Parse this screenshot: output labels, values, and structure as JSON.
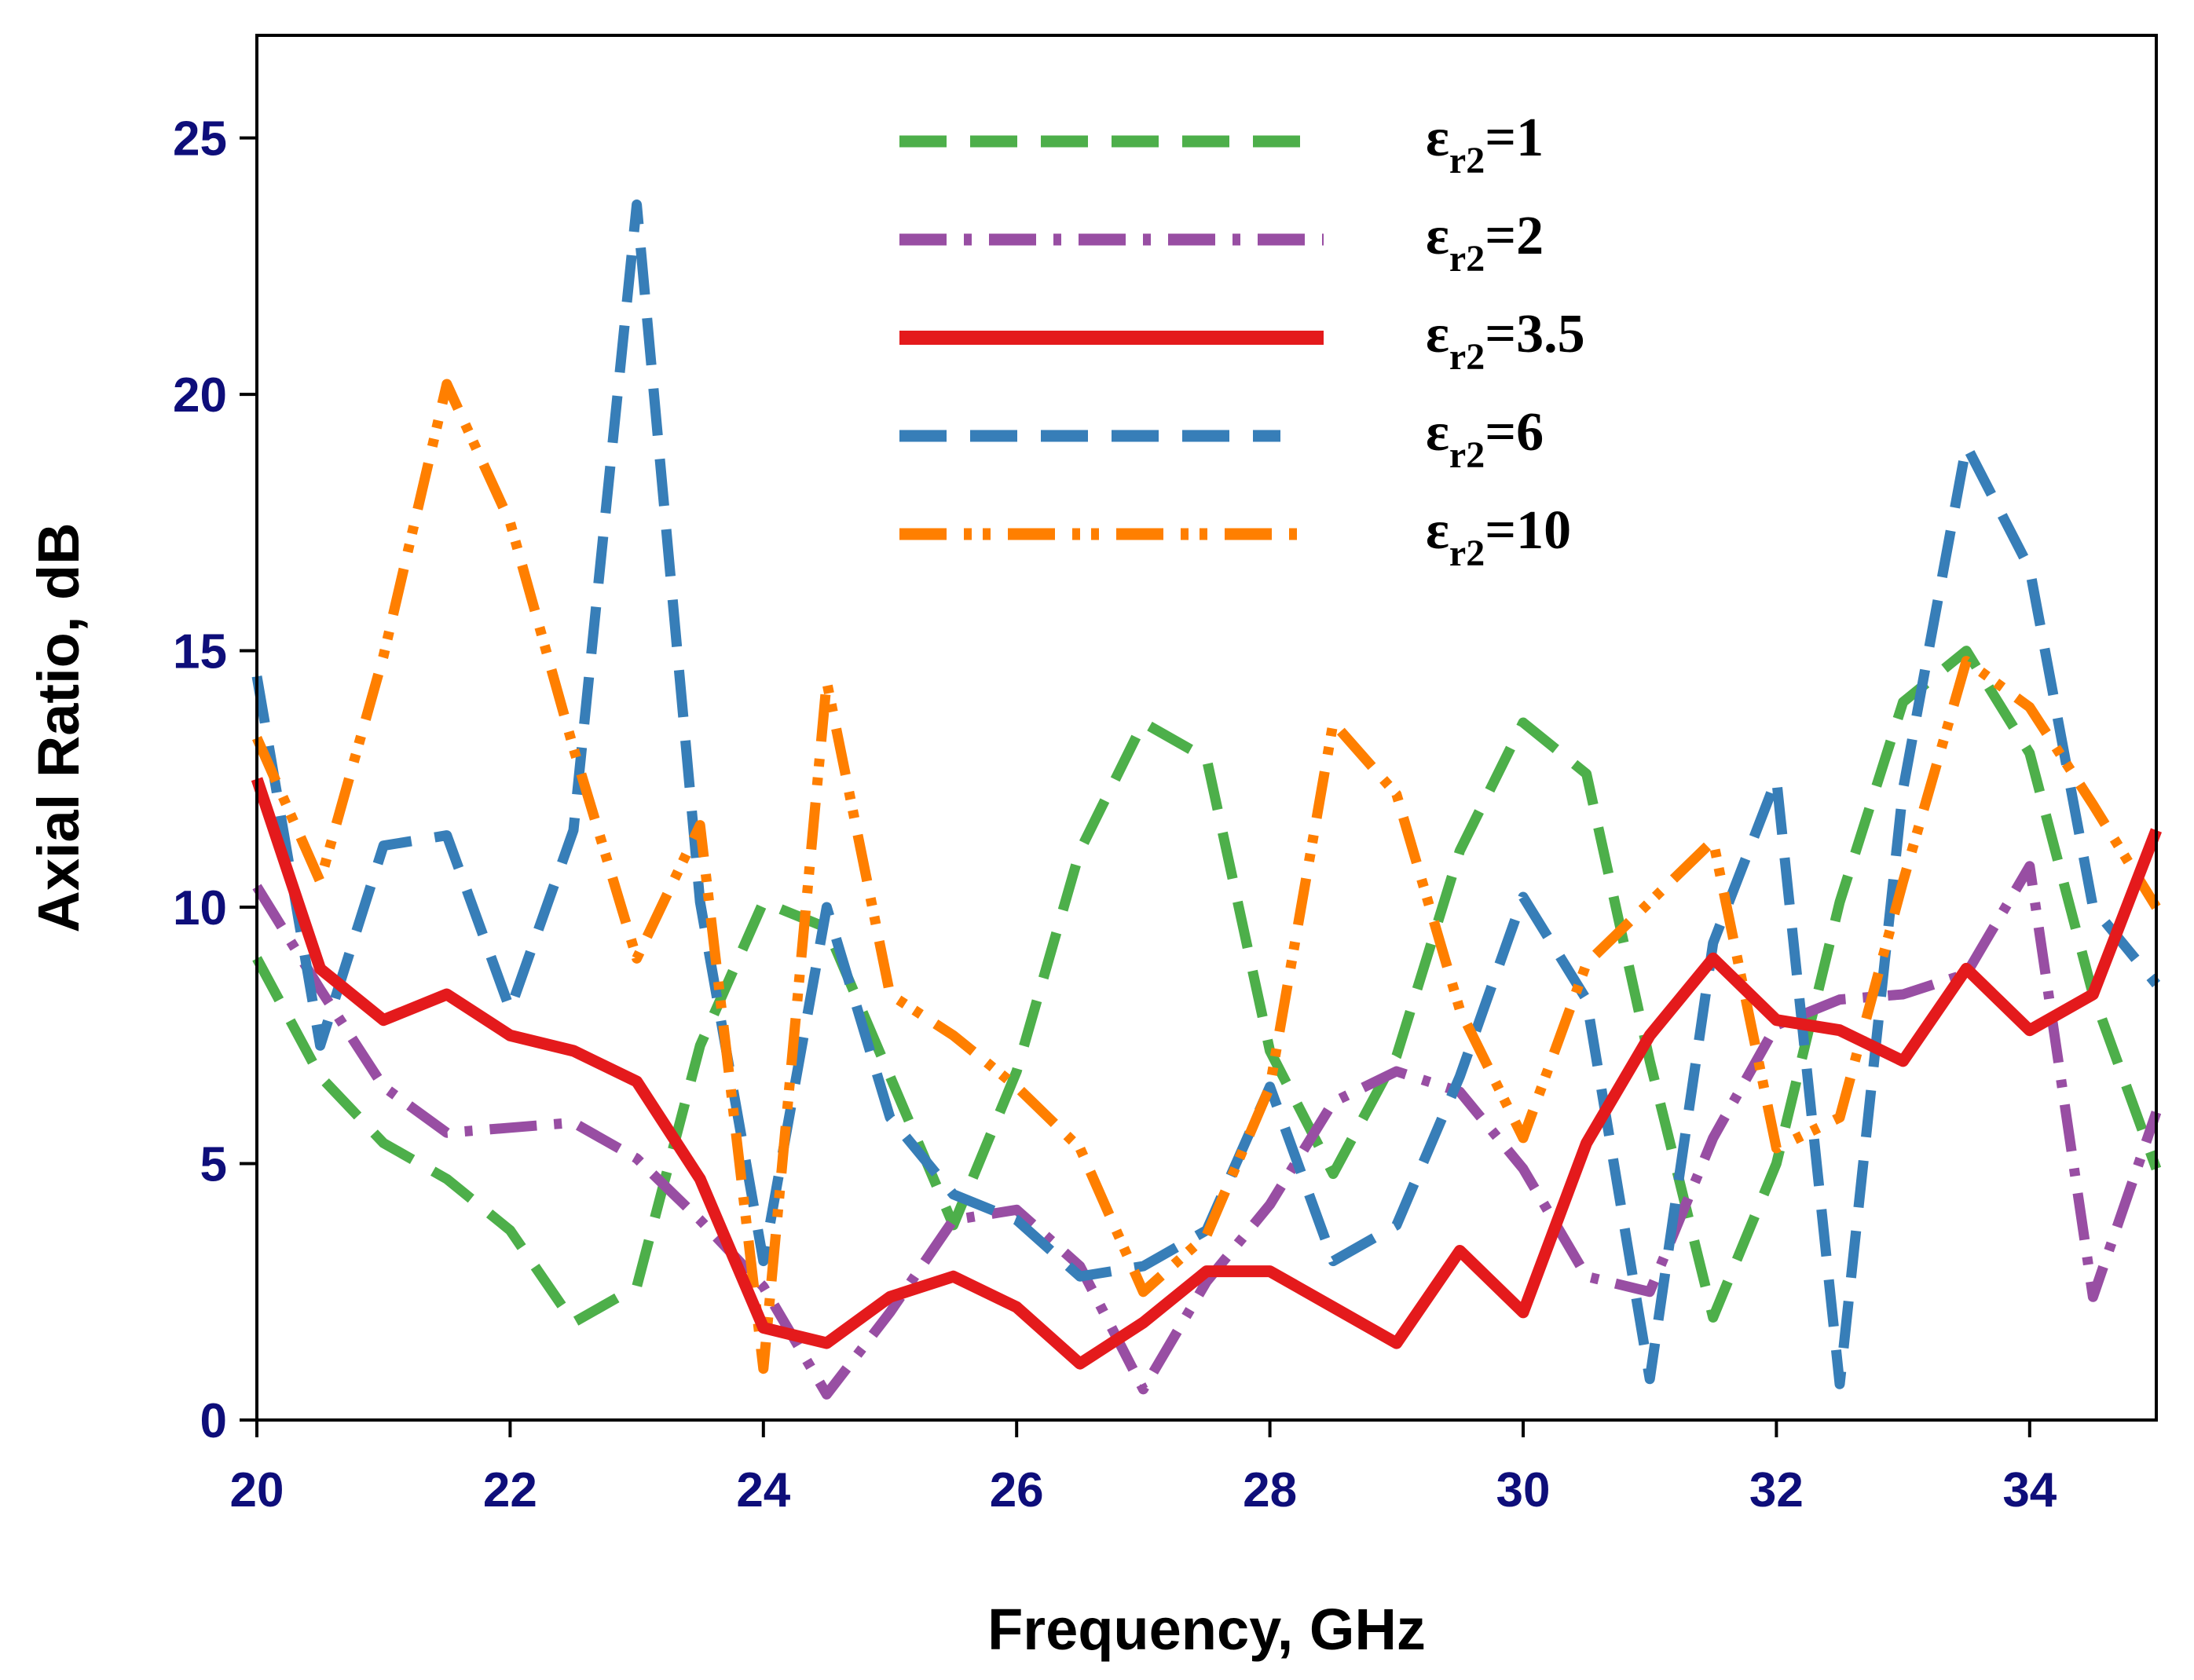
{
  "chart_data": {
    "type": "line",
    "title": "",
    "xlabel": "Frequency, GHz",
    "ylabel": "Axial Ratio, dB",
    "xlim": [
      20,
      35
    ],
    "ylim": [
      0,
      27
    ],
    "x_ticks": [
      20,
      22,
      24,
      26,
      28,
      30,
      32,
      34
    ],
    "y_ticks": [
      0,
      5,
      10,
      15,
      20,
      25
    ],
    "grid": false,
    "legend_position": "top-center",
    "x": [
      20,
      20.5,
      21,
      21.5,
      22,
      22.5,
      23,
      23.5,
      24,
      24.5,
      25,
      25.5,
      26,
      26.5,
      27,
      27.5,
      28,
      28.5,
      29,
      29.5,
      30,
      30.5,
      31,
      31.5,
      32,
      32.5,
      33,
      33.5,
      34,
      34.5,
      35
    ],
    "series": [
      {
        "name": "εr2=1",
        "label_main": "ε",
        "label_sub": "r2",
        "label_value": "=1",
        "color": "#4daf4a",
        "dash": "dashed",
        "values": [
          9.0,
          6.7,
          5.4,
          4.7,
          3.7,
          1.9,
          2.6,
          7.3,
          10.1,
          9.6,
          6.7,
          3.8,
          6.8,
          11.1,
          13.6,
          12.9,
          7.2,
          4.8,
          7.1,
          11.1,
          13.6,
          12.6,
          7.0,
          2.0,
          5.0,
          10.1,
          14.0,
          15.0,
          13.0,
          8.3,
          4.9
        ]
      },
      {
        "name": "εr2=2",
        "label_main": "ε",
        "label_sub": "r2",
        "label_value": "=2",
        "color": "#984ea3",
        "dash": "dashdot",
        "values": [
          10.4,
          8.4,
          6.5,
          5.6,
          5.7,
          5.8,
          5.1,
          3.9,
          2.6,
          0.5,
          2.1,
          3.9,
          4.1,
          3.0,
          0.6,
          2.7,
          4.2,
          6.2,
          6.8,
          6.4,
          4.9,
          2.8,
          2.5,
          5.5,
          7.7,
          8.2,
          8.3,
          8.7,
          10.8,
          2.4,
          6.0
        ]
      },
      {
        "name": "εr2=3.5",
        "label_main": "ε",
        "label_sub": "r2",
        "label_value": "=3.5",
        "color": "#e41a1c",
        "dash": "solid",
        "values": [
          12.5,
          8.8,
          7.8,
          8.3,
          7.5,
          7.2,
          6.6,
          4.7,
          1.8,
          1.5,
          2.4,
          2.8,
          2.2,
          1.1,
          1.9,
          2.9,
          2.9,
          2.2,
          1.5,
          3.3,
          2.1,
          5.4,
          7.5,
          9.0,
          7.8,
          7.6,
          7.0,
          8.8,
          7.6,
          8.3,
          11.5
        ]
      },
      {
        "name": "εr2=6",
        "label_main": "ε",
        "label_sub": "r2",
        "label_value": "=6",
        "color": "#377eb8",
        "dash": "dashed",
        "values": [
          14.5,
          7.3,
          11.2,
          11.4,
          8.0,
          11.5,
          23.7,
          10.1,
          3.1,
          10.0,
          5.9,
          4.4,
          3.9,
          2.8,
          3.0,
          3.7,
          6.5,
          3.1,
          3.8,
          6.7,
          10.2,
          8.2,
          0.8,
          9.3,
          12.5,
          0.7,
          12.3,
          19.0,
          16.6,
          10.0,
          8.5
        ]
      },
      {
        "name": "εr2=10",
        "label_main": "ε",
        "label_sub": "r2",
        "label_value": "=10",
        "color": "#ff7f00",
        "dash": "dashdotdot",
        "values": [
          13.3,
          10.5,
          14.9,
          20.2,
          17.5,
          13.1,
          9.0,
          11.6,
          1.0,
          14.4,
          8.3,
          7.5,
          6.5,
          5.3,
          2.5,
          3.6,
          6.5,
          13.6,
          12.2,
          8.0,
          5.5,
          8.9,
          10.1,
          11.3,
          5.3,
          5.9,
          10.5,
          14.8,
          13.9,
          12.0,
          10.0
        ]
      }
    ]
  }
}
